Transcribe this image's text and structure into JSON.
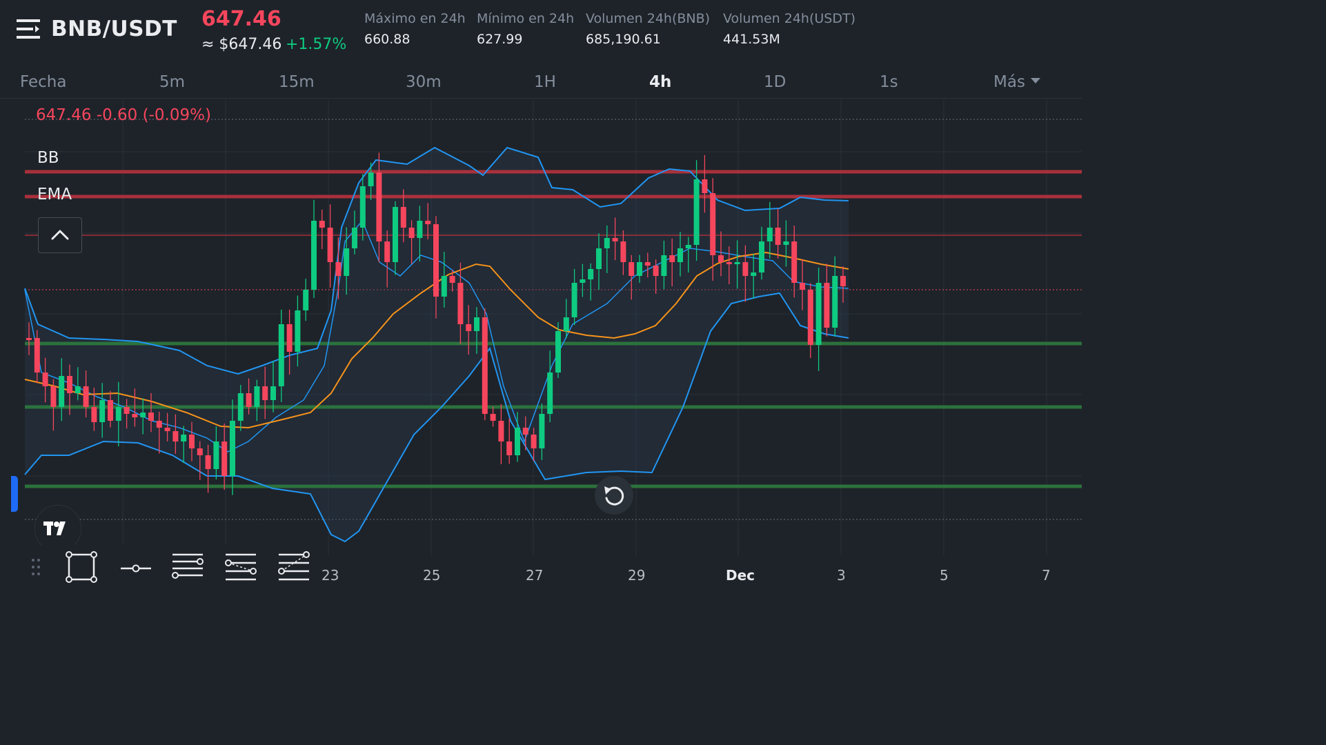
{
  "header": {
    "pair": "BNB/USDT",
    "last_price": "647.46",
    "approx_price": "≈ $647.46",
    "change_pct": "+1.57%",
    "stats": [
      {
        "label": "Máximo en 24h",
        "value": "660.88"
      },
      {
        "label": "Mínimo en 24h",
        "value": "627.99"
      },
      {
        "label": "Volumen 24h(BNB)",
        "value": "685,190.61"
      },
      {
        "label": "Volumen 24h(USDT)",
        "value": "441.53M"
      }
    ]
  },
  "timeframes": {
    "items": [
      "Fecha",
      "5m",
      "15m",
      "30m",
      "1H",
      "4h",
      "1D",
      "1s",
      "Más"
    ],
    "active": "4h"
  },
  "chart": {
    "price_tag": "647.46  -0.60 (-0.09%)",
    "indicator_bb": "BB",
    "indicator_ema": "EMA",
    "x_ticks": [
      "23",
      "25",
      "27",
      "29",
      "Dec",
      "3",
      "5",
      "7"
    ],
    "colors": {
      "up": "#0ecb81",
      "down": "#f6465d",
      "bb_line": "#2196f3",
      "ema_line": "#f7931a",
      "resistance": "#b8323d",
      "support": "#2d7a3e",
      "background": "#1e2329"
    }
  },
  "icons": [
    "menu-icon",
    "chevron-up-icon",
    "reset-icon",
    "tradingview-logo-icon",
    "drag-handle-icon",
    "rectangle-tool-icon",
    "horizontal-line-tool-icon",
    "parallel-lines-tool-icon",
    "fib-retracement-tool-icon",
    "fib-extension-tool-icon"
  ]
}
